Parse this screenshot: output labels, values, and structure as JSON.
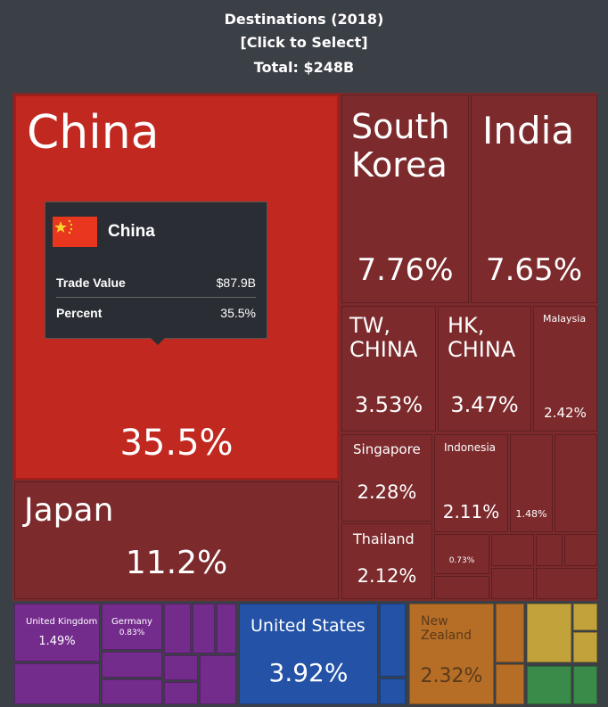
{
  "header": {
    "title": "Destinations (2018)",
    "subtitle": "[Click to Select]",
    "total": "Total: $248B"
  },
  "tooltip": {
    "country": "China",
    "rows": [
      {
        "label": "Trade Value",
        "value": "$87.9B"
      },
      {
        "label": "Percent",
        "value": "35.5%"
      }
    ]
  },
  "colors": {
    "asia_selected": "#c1281f",
    "asia": "#7c2a2c",
    "europe": "#742c8c",
    "north_america": "#2452a6",
    "oceania": "#b66e26",
    "africa": "#c2a23a",
    "south_america": "#3a8a4a",
    "background": "#3b3f46"
  },
  "chart_data": {
    "type": "treemap",
    "title": "Destinations (2018)",
    "total": "$248B",
    "cells": [
      {
        "name": "China",
        "label": "China",
        "percent": "35.5%",
        "value": 35.5
      },
      {
        "name": "Japan",
        "label": "Japan",
        "percent": "11.2%",
        "value": 11.2
      },
      {
        "name": "South Korea",
        "label": "South Korea",
        "percent": "7.76%",
        "value": 7.76
      },
      {
        "name": "India",
        "label": "India",
        "percent": "7.65%",
        "value": 7.65
      },
      {
        "name": "TW, China",
        "label": "TW, CHINA",
        "percent": "3.53%",
        "value": 3.53
      },
      {
        "name": "HK, China",
        "label": "HK, CHINA",
        "percent": "3.47%",
        "value": 3.47
      },
      {
        "name": "Malaysia",
        "label": "Malaysia",
        "percent": "2.42%",
        "value": 2.42
      },
      {
        "name": "Singapore",
        "label": "Singapore",
        "percent": "2.28%",
        "value": 2.28
      },
      {
        "name": "Indonesia",
        "label": "Indonesia",
        "percent": "2.11%",
        "value": 2.11
      },
      {
        "name": "Thailand",
        "label": "Thailand",
        "percent": "2.12%",
        "value": 2.12
      },
      {
        "name": "",
        "label": "",
        "percent": "1.48%",
        "value": 1.48
      },
      {
        "name": "",
        "label": "",
        "percent": "0.73%",
        "value": 0.73
      },
      {
        "name": "United Kingdom",
        "label": "United Kingdom",
        "percent": "1.49%",
        "value": 1.49
      },
      {
        "name": "Germany",
        "label": "Germany",
        "percent": "0.83%",
        "value": 0.83
      },
      {
        "name": "United States",
        "label": "United States",
        "percent": "3.92%",
        "value": 3.92
      },
      {
        "name": "New Zealand",
        "label": "New Zealand",
        "percent": "2.32%",
        "value": 2.32
      }
    ]
  }
}
